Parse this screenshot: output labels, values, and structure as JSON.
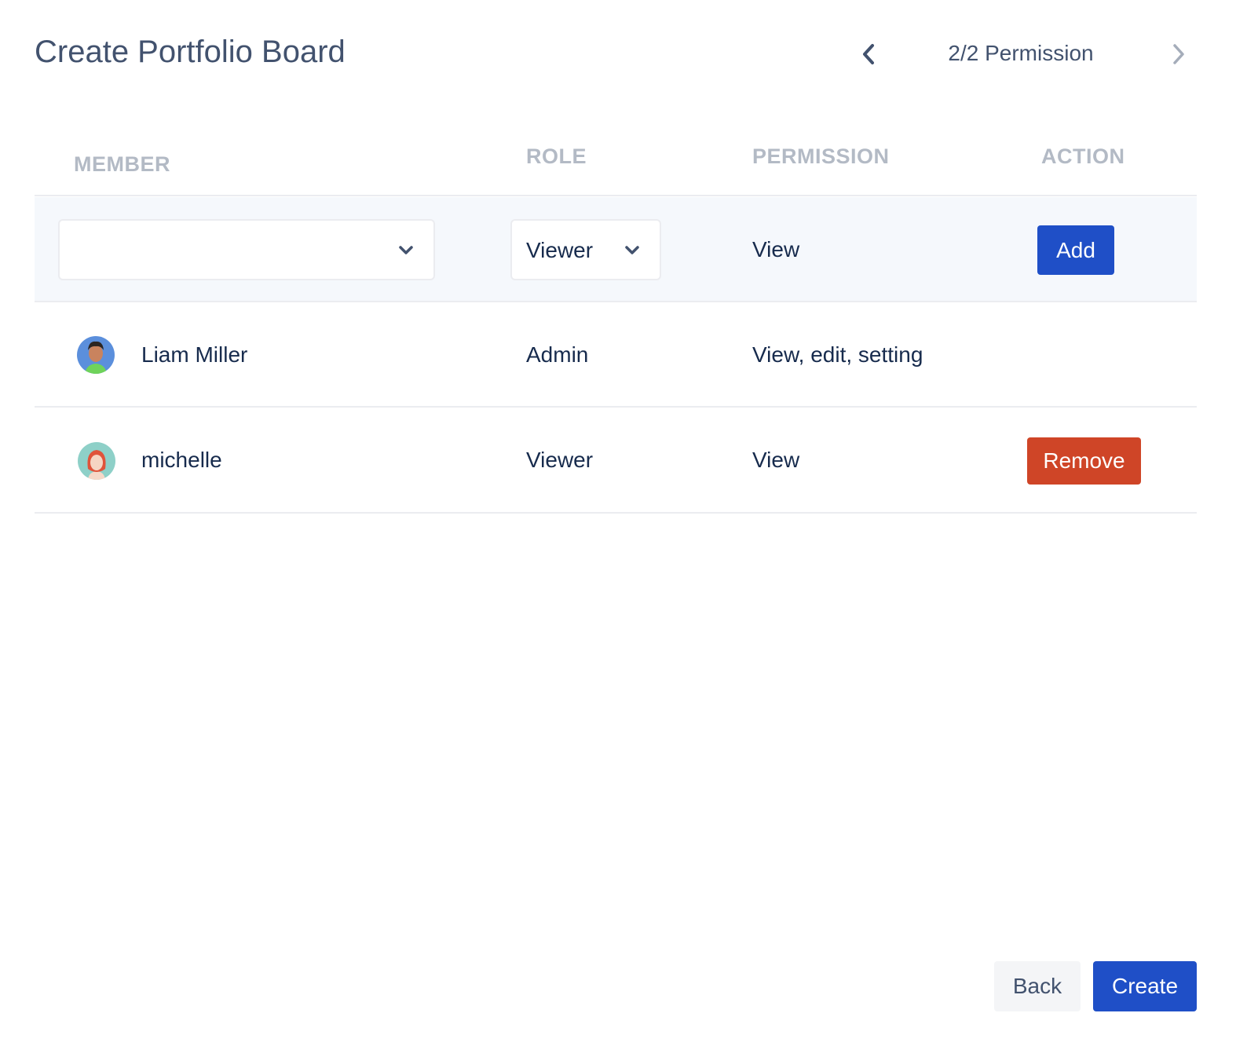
{
  "header": {
    "title": "Create Portfolio Board",
    "step": "2/2 Permission"
  },
  "columns": {
    "member": "MEMBER",
    "role": "ROLE",
    "permission": "PERMISSION",
    "action": "ACTION"
  },
  "add_row": {
    "member_value": "",
    "role_value": "Viewer",
    "permission": "View",
    "add_label": "Add"
  },
  "members": [
    {
      "name": "Liam Miller",
      "role": "Admin",
      "permission": "View, edit, setting",
      "avatar": "male-avatar"
    },
    {
      "name": "michelle",
      "role": "Viewer",
      "permission": "View",
      "avatar": "female-avatar",
      "action": "Remove"
    }
  ],
  "footer": {
    "back_label": "Back",
    "create_label": "Create"
  },
  "colors": {
    "primary": "#1f4fc7",
    "danger": "#cf4527",
    "heading": "#42526e",
    "muted": "#b3bac5"
  }
}
